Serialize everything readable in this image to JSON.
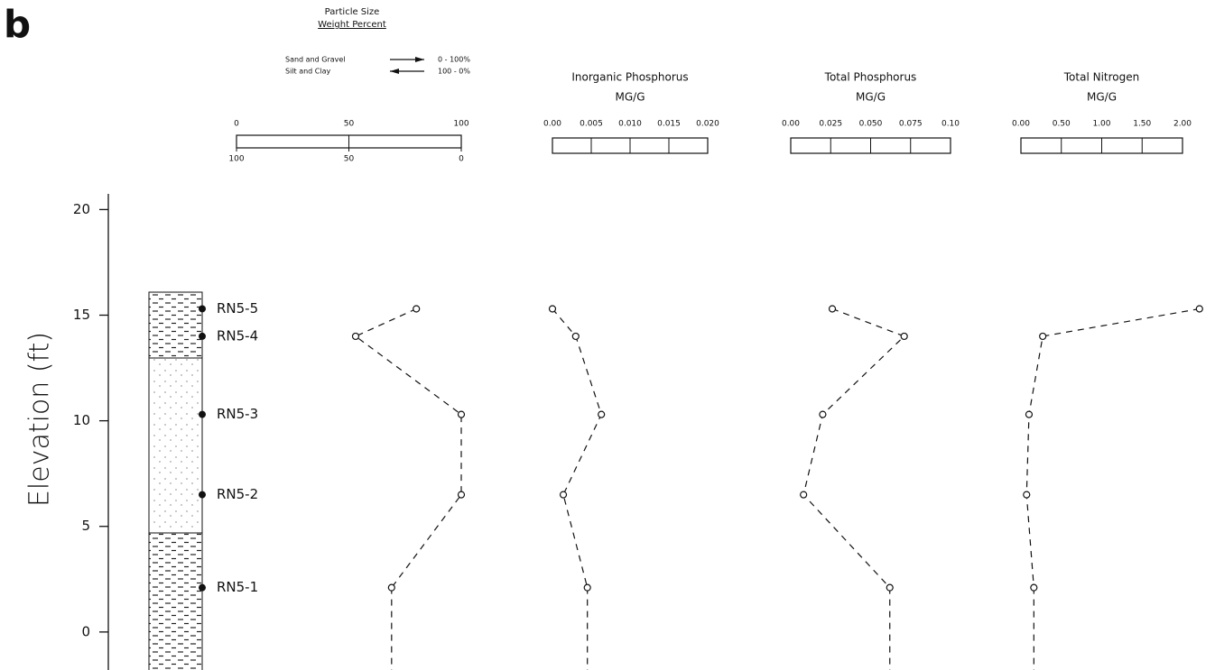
{
  "panel_label": "b",
  "y_axis": {
    "label": "Elevation (ft)",
    "ylim": [
      -1.8,
      20.7
    ],
    "yticks": [
      0,
      5,
      10,
      15,
      20
    ]
  },
  "samples": {
    "names": [
      "RN5-5",
      "RN5-4",
      "RN5-3",
      "RN5-2",
      "RN5-1"
    ],
    "elevations": [
      15.3,
      14.0,
      10.3,
      6.5,
      2.1
    ]
  },
  "chart_data": [
    {
      "type": "line",
      "title": "Particle Size",
      "subtitle": "Weight Percent",
      "legend": [
        {
          "name": "Sand and Gravel",
          "range": "0 - 100%"
        },
        {
          "name": "Silt and Clay",
          "range": "100 - 0%"
        }
      ],
      "xlim": [
        0,
        100
      ],
      "xticks": [
        0,
        50,
        100
      ],
      "x2lim": [
        100,
        0
      ],
      "x2ticks": [
        100,
        50,
        0
      ],
      "values": [
        80,
        53,
        100,
        100,
        69
      ]
    },
    {
      "type": "line",
      "title": "Inorganic Phosphorus",
      "subtitle": "MG/G",
      "xlim": [
        0,
        0.02
      ],
      "xticks": [
        {
          "value": 0,
          "label": "0.00"
        },
        {
          "value": 0.005,
          "label": "0.005"
        },
        {
          "value": 0.01,
          "label": "0.010"
        },
        {
          "value": 0.015,
          "label": "0.015"
        },
        {
          "value": 0.02,
          "label": "0.020"
        }
      ],
      "values": [
        0.0,
        0.003,
        0.0063,
        0.0014,
        0.0045
      ]
    },
    {
      "type": "line",
      "title": "Total Phosphorus",
      "subtitle": "MG/G",
      "xlim": [
        0,
        0.1
      ],
      "xticks": [
        {
          "value": 0,
          "label": "0.00"
        },
        0.025,
        {
          "value": 0.05,
          "label": "0.050"
        },
        0.075,
        {
          "value": 0.1,
          "label": "0.10"
        }
      ],
      "values": [
        0.026,
        0.071,
        0.02,
        0.008,
        0.062
      ]
    },
    {
      "type": "line",
      "title": "Total Nitrogen",
      "subtitle": "MG/G",
      "xlim": [
        0,
        2
      ],
      "xticks": [
        {
          "value": 0,
          "label": "0.00"
        },
        {
          "value": 0.5,
          "label": "0.50"
        },
        {
          "value": 1,
          "label": "1.00"
        },
        {
          "value": 1.5,
          "label": "1.50"
        },
        {
          "value": 2,
          "label": "2.00"
        }
      ],
      "values": [
        2.21,
        0.27,
        0.1,
        0.07,
        0.16
      ]
    }
  ]
}
